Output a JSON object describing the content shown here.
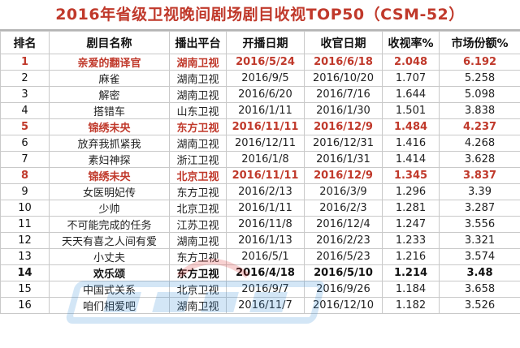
{
  "title": "2016年省级卫视晚间剧场剧目收视TOP50（CSM-52）",
  "headers": [
    "排名",
    "剧目名称",
    "播出平台",
    "开播日期",
    "收官日期",
    "收视率%",
    "市场份额%"
  ],
  "rows": [
    {
      "rank": "1",
      "name": "亲爱的翻译官",
      "channel": "湖南卫视",
      "start": "2016/5/24",
      "end": "2016/6/18",
      "rating": "2.048",
      "share": "6.192",
      "style": "hl"
    },
    {
      "rank": "2",
      "name": "麻雀",
      "channel": "湖南卫视",
      "start": "2016/9/5",
      "end": "2016/10/20",
      "rating": "1.707",
      "share": "5.258",
      "style": ""
    },
    {
      "rank": "3",
      "name": "解密",
      "channel": "湖南卫视",
      "start": "2016/6/20",
      "end": "2016/7/16",
      "rating": "1.644",
      "share": "5.098",
      "style": ""
    },
    {
      "rank": "4",
      "name": "搭错车",
      "channel": "山东卫视",
      "start": "2016/1/11",
      "end": "2016/1/30",
      "rating": "1.501",
      "share": "3.838",
      "style": ""
    },
    {
      "rank": "5",
      "name": "锦绣未央",
      "channel": "东方卫视",
      "start": "2016/11/11",
      "end": "2016/12/9",
      "rating": "1.484",
      "share": "4.237",
      "style": "hl"
    },
    {
      "rank": "6",
      "name": "放弃我抓紧我",
      "channel": "湖南卫视",
      "start": "2016/12/11",
      "end": "2016/12/31",
      "rating": "1.416",
      "share": "4.268",
      "style": ""
    },
    {
      "rank": "7",
      "name": "素妇神探",
      "channel": "浙江卫视",
      "start": "2016/1/8",
      "end": "2016/1/31",
      "rating": "1.414",
      "share": "3.628",
      "style": ""
    },
    {
      "rank": "8",
      "name": "锦绣未央",
      "channel": "北京卫视",
      "start": "2016/11/11",
      "end": "2016/12/9",
      "rating": "1.345",
      "share": "3.837",
      "style": "hl"
    },
    {
      "rank": "9",
      "name": "女医明妃传",
      "channel": "东方卫视",
      "start": "2016/2/13",
      "end": "2016/3/9",
      "rating": "1.296",
      "share": "3.39",
      "style": ""
    },
    {
      "rank": "10",
      "name": "少帅",
      "channel": "北京卫视",
      "start": "2016/1/11",
      "end": "2016/2/3",
      "rating": "1.281",
      "share": "3.287",
      "style": ""
    },
    {
      "rank": "11",
      "name": "不可能完成的任务",
      "channel": "江苏卫视",
      "start": "2016/11/8",
      "end": "2016/12/4",
      "rating": "1.247",
      "share": "3.556",
      "style": ""
    },
    {
      "rank": "12",
      "name": "天天有喜之人间有爱",
      "channel": "湖南卫视",
      "start": "2016/1/13",
      "end": "2016/2/23",
      "rating": "1.233",
      "share": "3.321",
      "style": ""
    },
    {
      "rank": "13",
      "name": "小丈夫",
      "channel": "东方卫视",
      "start": "2016/5/1",
      "end": "2016/5/23",
      "rating": "1.216",
      "share": "3.574",
      "style": ""
    },
    {
      "rank": "14",
      "name": "欢乐颂",
      "channel": "东方卫视",
      "start": "2016/4/18",
      "end": "2016/5/10",
      "rating": "1.214",
      "share": "3.48",
      "style": "bold"
    },
    {
      "rank": "15",
      "name": "中国式关系",
      "channel": "北京卫视",
      "start": "2016/9/7",
      "end": "2016/9/26",
      "rating": "1.184",
      "share": "3.658",
      "style": ""
    },
    {
      "rank": "16",
      "name": "咱们相爱吧",
      "channel": "湖南卫视",
      "start": "2016/11/7",
      "end": "2016/12/10",
      "rating": "1.182",
      "share": "3.526",
      "style": ""
    }
  ]
}
